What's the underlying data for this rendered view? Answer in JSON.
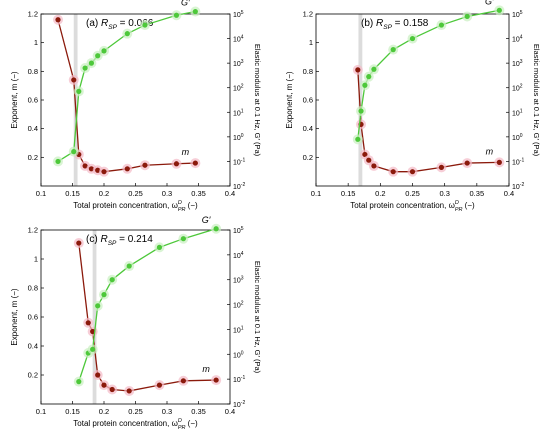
{
  "chart_data": [
    {
      "type": "line",
      "panel_label": "(a)",
      "rsp_label": "R",
      "rsp_sub": "SP",
      "rsp_value": " = 0.066",
      "xlabel_main": "Total protein concentration, ω",
      "xlabel_sub": "PR",
      "xlabel_sup": "D",
      "xlabel_tail": " (−)",
      "ylabel_left": "Exponent, m (−)",
      "ylabel_right": "Elastic modulus at 0.1 Hz, G′ (Pa)",
      "xlim": [
        0.1,
        0.4
      ],
      "ylim_left": [
        0.0,
        1.2
      ],
      "ylim_right_log10": [
        -2,
        5
      ],
      "x_ticks": [
        "0.1",
        "0.15",
        "0.2",
        "0.25",
        "0.3",
        "0.35",
        "0.4"
      ],
      "y_ticks_left": [
        "0.2",
        "0.4",
        "0.6",
        "0.8",
        "1",
        "1.2"
      ],
      "y_ticks_right": [
        {
          "base": "10",
          "exp": "-2"
        },
        {
          "base": "10",
          "exp": "-1"
        },
        {
          "base": "10",
          "exp": "0"
        },
        {
          "base": "10",
          "exp": "1"
        },
        {
          "base": "10",
          "exp": "2"
        },
        {
          "base": "10",
          "exp": "3"
        },
        {
          "base": "10",
          "exp": "4"
        },
        {
          "base": "10",
          "exp": "5"
        }
      ],
      "shaded_band_x": [
        0.152,
        0.158
      ],
      "series": [
        {
          "name": "m",
          "axis": "left",
          "color": "#8B1A0C",
          "x": [
            0.127,
            0.152,
            0.16,
            0.17,
            0.18,
            0.19,
            0.2,
            0.237,
            0.265,
            0.315,
            0.345
          ],
          "y": [
            1.16,
            0.74,
            0.22,
            0.14,
            0.12,
            0.11,
            0.1,
            0.12,
            0.145,
            0.155,
            0.16
          ]
        },
        {
          "name": "G′",
          "axis": "right",
          "color": "#4DC83A",
          "x": [
            0.127,
            0.152,
            0.16,
            0.17,
            0.18,
            0.19,
            0.2,
            0.237,
            0.265,
            0.315,
            0.345
          ],
          "y": [
            -1.0,
            -0.6,
            1.85,
            2.8,
            3.0,
            3.3,
            3.5,
            4.2,
            4.55,
            4.95,
            5.1
          ]
        }
      ]
    },
    {
      "type": "line",
      "panel_label": "(b)",
      "rsp_label": "R",
      "rsp_sub": "SP",
      "rsp_value": " = 0.158",
      "xlabel_main": "Total protein concentration, ω",
      "xlabel_sub": "PR",
      "xlabel_sup": "D",
      "xlabel_tail": " (−)",
      "ylabel_left": "Exponent, m (−)",
      "ylabel_right": "Elastic modulus at 0.1 Hz, G′ (Pa)",
      "xlim": [
        0.1,
        0.4
      ],
      "ylim_left": [
        0.0,
        1.2
      ],
      "ylim_right_log10": [
        -2,
        5
      ],
      "x_ticks": [
        "0.1",
        "0.15",
        "0.2",
        "0.25",
        "0.3",
        "0.35",
        "0.4"
      ],
      "y_ticks_left": [
        "0.2",
        "0.4",
        "0.6",
        "0.8",
        "1",
        "1.2"
      ],
      "y_ticks_right": [
        {
          "base": "10",
          "exp": "-2"
        },
        {
          "base": "10",
          "exp": "-1"
        },
        {
          "base": "10",
          "exp": "0"
        },
        {
          "base": "10",
          "exp": "1"
        },
        {
          "base": "10",
          "exp": "2"
        },
        {
          "base": "10",
          "exp": "3"
        },
        {
          "base": "10",
          "exp": "4"
        },
        {
          "base": "10",
          "exp": "5"
        }
      ],
      "shaded_band_x": [
        0.166,
        0.172
      ],
      "series": [
        {
          "name": "m",
          "axis": "left",
          "color": "#8B1A0C",
          "x": [
            0.165,
            0.17,
            0.176,
            0.182,
            0.19,
            0.22,
            0.25,
            0.295,
            0.335,
            0.385
          ],
          "y": [
            0.81,
            0.43,
            0.22,
            0.18,
            0.14,
            0.1,
            0.1,
            0.13,
            0.16,
            0.165
          ]
        },
        {
          "name": "G′",
          "axis": "right",
          "color": "#4DC83A",
          "x": [
            0.165,
            0.17,
            0.176,
            0.182,
            0.19,
            0.22,
            0.25,
            0.295,
            0.335,
            0.385
          ],
          "y": [
            -0.1,
            1.05,
            2.1,
            2.45,
            2.75,
            3.55,
            4.0,
            4.55,
            4.9,
            5.15
          ]
        }
      ]
    },
    {
      "type": "line",
      "panel_label": "(c)",
      "rsp_label": "R",
      "rsp_sub": "SP",
      "rsp_value": " = 0.214",
      "xlabel_main": "Total protein concentration, ω",
      "xlabel_sub": "PR",
      "xlabel_sup": "D",
      "xlabel_tail": " (−)",
      "ylabel_left": "Exponent, m (−)",
      "ylabel_right": "Elastic modulus at 0.1 Hz, G′ (Pa)",
      "xlim": [
        0.1,
        0.4
      ],
      "ylim_left": [
        0.0,
        1.2
      ],
      "ylim_right_log10": [
        -2,
        5
      ],
      "x_ticks": [
        "0.1",
        "0.15",
        "0.2",
        "0.25",
        "0.3",
        "0.35",
        "0.4"
      ],
      "y_ticks_left": [
        "0.2",
        "0.4",
        "0.6",
        "0.8",
        "1",
        "1.2"
      ],
      "y_ticks_right": [
        {
          "base": "10",
          "exp": "-2"
        },
        {
          "base": "10",
          "exp": "-1"
        },
        {
          "base": "10",
          "exp": "0"
        },
        {
          "base": "10",
          "exp": "1"
        },
        {
          "base": "10",
          "exp": "2"
        },
        {
          "base": "10",
          "exp": "3"
        },
        {
          "base": "10",
          "exp": "4"
        },
        {
          "base": "10",
          "exp": "5"
        }
      ],
      "shaded_band_x": [
        0.182,
        0.188
      ],
      "series": [
        {
          "name": "m",
          "axis": "left",
          "color": "#8B1A0C",
          "x": [
            0.16,
            0.175,
            0.182,
            0.19,
            0.2,
            0.213,
            0.24,
            0.288,
            0.326,
            0.378
          ],
          "y": [
            1.11,
            0.56,
            0.5,
            0.2,
            0.13,
            0.1,
            0.09,
            0.13,
            0.16,
            0.165
          ]
        },
        {
          "name": "G′",
          "axis": "right",
          "color": "#4DC83A",
          "x": [
            0.16,
            0.175,
            0.182,
            0.19,
            0.2,
            0.213,
            0.24,
            0.288,
            0.326,
            0.378
          ],
          "y": [
            -1.1,
            0.05,
            0.2,
            1.95,
            2.4,
            3.0,
            3.55,
            4.3,
            4.65,
            5.05
          ]
        }
      ]
    }
  ]
}
